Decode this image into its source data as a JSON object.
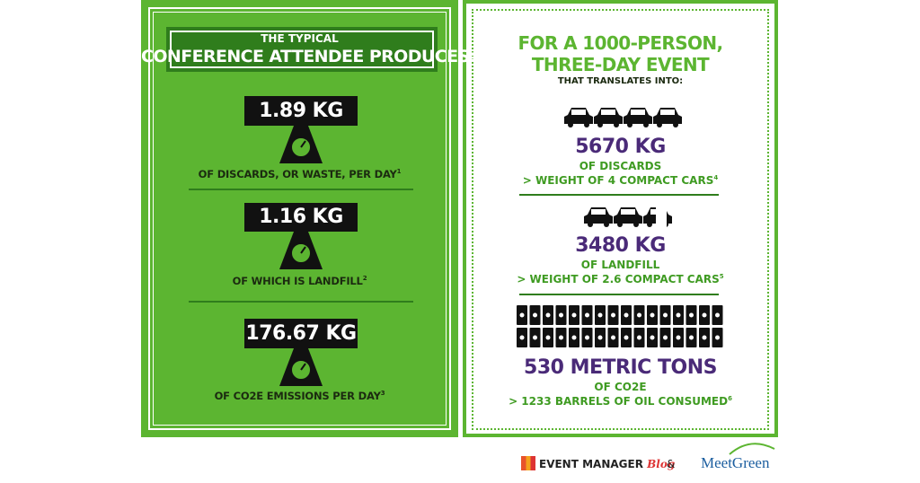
{
  "left": {
    "header": {
      "line1": "THE TYPICAL",
      "line2": "CONFERENCE ATTENDEE PRODUCES:"
    },
    "items": [
      {
        "value": "1.89 KG",
        "caption": "OF DISCARDS, OR WASTE, PER DAY",
        "note": "1"
      },
      {
        "value": "1.16 KG",
        "caption": "OF WHICH IS LANDFILL",
        "note": "2"
      },
      {
        "value": "176.67 KG",
        "caption": "OF CO2E EMISSIONS PER DAY",
        "note": "3"
      }
    ]
  },
  "right": {
    "header": {
      "line1": "FOR A 1000-PERSON,",
      "line2": "THREE-DAY EVENT",
      "line3": "THAT TRANSLATES INTO:"
    },
    "items": [
      {
        "value": "5670 KG",
        "line1": "OF DISCARDS",
        "line2": "> WEIGHT OF 4 COMPACT CARS",
        "note": "4"
      },
      {
        "value": "3480 KG",
        "line1": "OF LANDFILL",
        "line2": "> WEIGHT OF 2.6 COMPACT CARS",
        "note": "5"
      },
      {
        "value": "530 METRIC TONS",
        "line1": "OF CO2E",
        "line2": "> 1233 BARRELS OF OIL CONSUMED",
        "note": "6"
      }
    ]
  },
  "footer": {
    "logo1": "EVENT MANAGER",
    "logo1_script": "Blog",
    "amp": "&",
    "logo2": "MeetGreen"
  }
}
